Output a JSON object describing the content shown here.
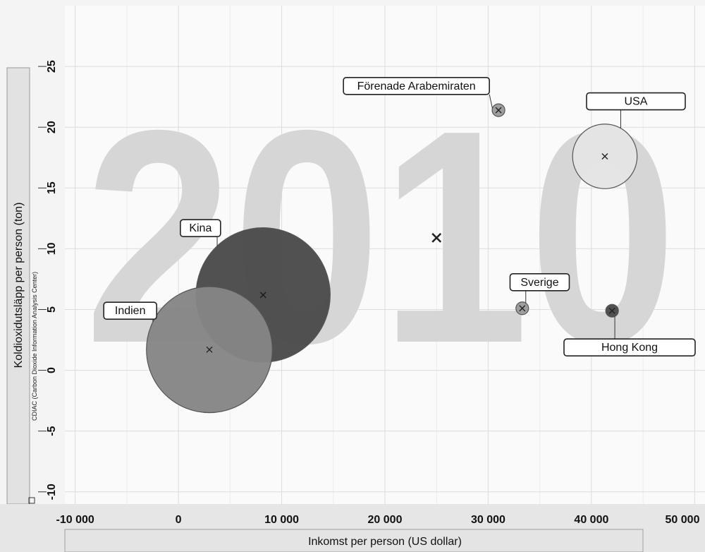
{
  "chart_data": {
    "type": "scatter",
    "subtype": "bubble",
    "watermark_year": "2010",
    "xlabel": "Inkomst per person (US dollar)",
    "ylabel": "Koldioxidutsläpp per person (ton)",
    "source_label": "CDIAC (Carbon Dioxide Information Analysis Center)",
    "xlim": [
      -11000,
      51000
    ],
    "ylim": [
      -11,
      30
    ],
    "x_ticks": [
      {
        "value": -10000,
        "label": "-10 000"
      },
      {
        "value": 0,
        "label": "0"
      },
      {
        "value": 10000,
        "label": "10 000"
      },
      {
        "value": 20000,
        "label": "20 000"
      },
      {
        "value": 30000,
        "label": "30 000"
      },
      {
        "value": 40000,
        "label": "40 000"
      },
      {
        "value": 50000,
        "label": "50 000"
      }
    ],
    "y_ticks": [
      {
        "value": -10,
        "label": "-10"
      },
      {
        "value": -5,
        "label": "-5"
      },
      {
        "value": 0,
        "label": "0"
      },
      {
        "value": 5,
        "label": "5"
      },
      {
        "value": 10,
        "label": "10"
      },
      {
        "value": 15,
        "label": "15"
      },
      {
        "value": 20,
        "label": "20"
      },
      {
        "value": 25,
        "label": "25"
      }
    ],
    "grid": true,
    "points": [
      {
        "name": "Kina",
        "x": 8200,
        "y": 6.2,
        "size": 1340,
        "color": "#4a4a4a",
        "label_side": "upper-left"
      },
      {
        "name": "Indien",
        "x": 3000,
        "y": 1.7,
        "size": 1180,
        "color": "#858585",
        "label_side": "left"
      },
      {
        "name": "Förenade Arabemiraten",
        "x": 31000,
        "y": 21.4,
        "size": 5,
        "color": "#9a9a9a",
        "label_side": "upper-left"
      },
      {
        "name": "USA",
        "x": 41300,
        "y": 17.6,
        "size": 310,
        "color": "#e4e4e4",
        "label_side": "upper-right"
      },
      {
        "name": "Sverige",
        "x": 33300,
        "y": 5.1,
        "size": 9,
        "color": "#9a9a9a",
        "label_side": "upper-right"
      },
      {
        "name": "Hong Kong",
        "x": 42000,
        "y": 4.9,
        "size": 7,
        "color": "#4a4a4a",
        "label_side": "lower-right"
      },
      {
        "name": "",
        "x": 25000,
        "y": 10.9,
        "size": 0,
        "color": "#333333",
        "label_side": "none"
      }
    ]
  }
}
